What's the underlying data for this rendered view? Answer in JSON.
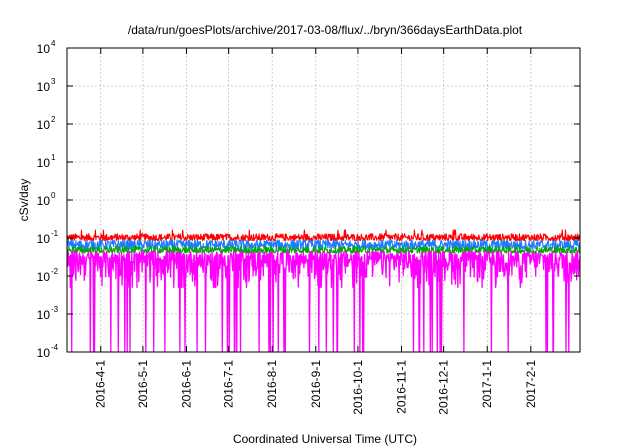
{
  "chart_data": {
    "type": "line",
    "title": "/data/run/goesPlots/archive/2017-03-08/flux/../bryn/366daysEarthData.plot",
    "xlabel": "Coordinated Universal Time (UTC)",
    "ylabel": "cSv/day",
    "x_range": [
      "2016-03-08",
      "2017-03-08"
    ],
    "yscale": "log",
    "ylim": [
      0.0001,
      10000
    ],
    "grid": true,
    "y_ticks": [
      {
        "base": "10",
        "exp": "-4",
        "value": 0.0001
      },
      {
        "base": "10",
        "exp": "-3",
        "value": 0.001
      },
      {
        "base": "10",
        "exp": "-2",
        "value": 0.01
      },
      {
        "base": "10",
        "exp": "-1",
        "value": 0.1
      },
      {
        "base": "10",
        "exp": "0",
        "value": 1
      },
      {
        "base": "10",
        "exp": "1",
        "value": 10
      },
      {
        "base": "10",
        "exp": "2",
        "value": 100
      },
      {
        "base": "10",
        "exp": "3",
        "value": 1000
      },
      {
        "base": "10",
        "exp": "4",
        "value": 10000
      }
    ],
    "x_ticks": [
      "2016-4-1",
      "2016-5-1",
      "2016-6-1",
      "2016-7-1",
      "2016-8-1",
      "2016-9-1",
      "2016-10-1",
      "2016-11-1",
      "2016-12-1",
      "2017-1-1",
      "2017-2-1"
    ],
    "series": [
      {
        "color": "#ff0000",
        "typical": 0.1,
        "low": 0.085,
        "high": 0.13
      },
      {
        "color": "#1e7bff",
        "typical": 0.075,
        "low": 0.05,
        "high": 0.09
      },
      {
        "color": "#00aa00",
        "typical": 0.05,
        "low": 0.04,
        "high": 0.06
      },
      {
        "color": "#ff00ff",
        "typical": 0.03,
        "low": 0.005,
        "high": 0.045,
        "dropouts_to": 0.0001
      }
    ]
  }
}
